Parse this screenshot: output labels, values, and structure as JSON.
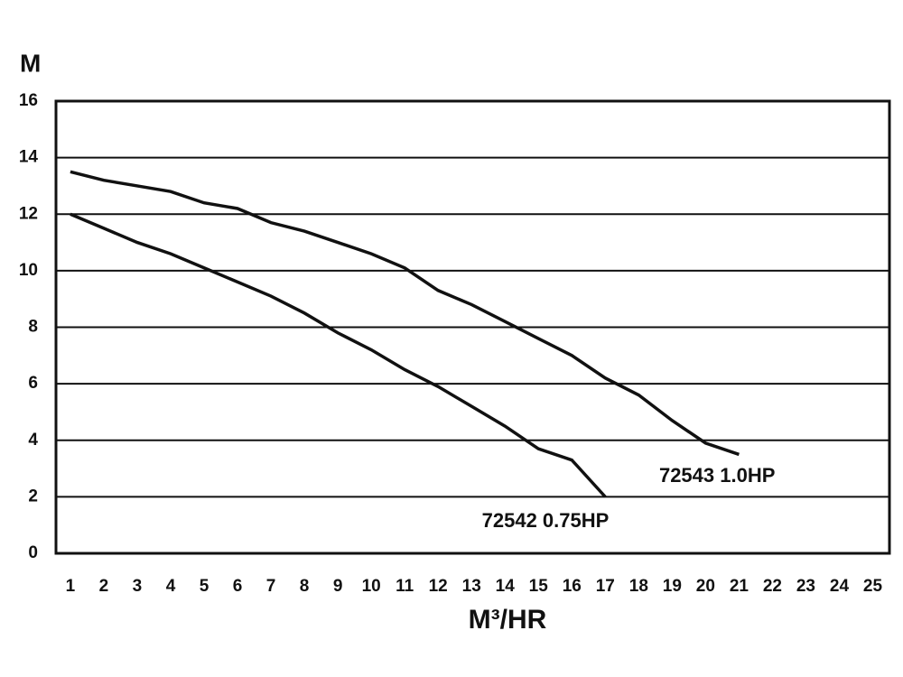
{
  "chart_data": {
    "type": "line",
    "y_label": "M",
    "x_label": "M³/HR",
    "series": [
      {
        "name": "72543 1.0HP",
        "color": "#111111",
        "x": [
          1,
          2,
          3,
          4,
          5,
          6,
          7,
          8,
          9,
          10,
          11,
          12,
          13,
          14,
          15,
          16,
          17,
          18,
          19,
          20,
          21
        ],
        "values": [
          13.5,
          13.2,
          13.0,
          12.8,
          12.4,
          12.2,
          11.7,
          11.4,
          11.0,
          10.6,
          10.1,
          9.3,
          8.8,
          8.2,
          7.6,
          7.0,
          6.2,
          5.6,
          4.7,
          3.9,
          3.5
        ]
      },
      {
        "name": "72542 0.75HP",
        "color": "#111111",
        "x": [
          1,
          2,
          3,
          4,
          5,
          6,
          7,
          8,
          9,
          10,
          11,
          12,
          13,
          14,
          15,
          16,
          17
        ],
        "values": [
          12.0,
          11.5,
          11.0,
          10.6,
          10.1,
          9.6,
          9.1,
          8.5,
          7.8,
          7.2,
          6.5,
          5.9,
          5.2,
          4.5,
          3.7,
          3.3,
          2.0
        ]
      }
    ],
    "xlim": [
      0.57,
      25.5
    ],
    "xticks": [
      1,
      2,
      3,
      4,
      5,
      6,
      7,
      8,
      9,
      10,
      11,
      12,
      13,
      14,
      15,
      16,
      17,
      18,
      19,
      20,
      21,
      22,
      23,
      24,
      25
    ],
    "ylim": [
      0,
      16
    ],
    "yticks": [
      0,
      2,
      4,
      6,
      8,
      10,
      12,
      14,
      16
    ],
    "grid": true
  }
}
